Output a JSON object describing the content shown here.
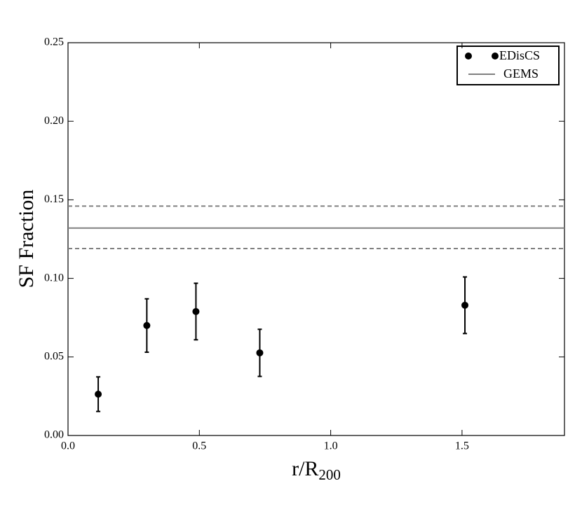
{
  "chart_data": {
    "type": "scatter",
    "xlabel": {
      "main": "r/R",
      "sub": "200"
    },
    "ylabel": "SF Fraction",
    "xlim": [
      0,
      1.89
    ],
    "ylim": [
      0,
      0.25
    ],
    "xticks": [
      {
        "value": 0,
        "label": "0.0"
      },
      {
        "value": 0.5,
        "label": "0.5"
      },
      {
        "value": 1,
        "label": "1.0"
      },
      {
        "value": 1.5,
        "label": "1.5"
      }
    ],
    "yticks": [
      {
        "value": 0,
        "label": "0.00"
      },
      {
        "value": 0.05,
        "label": "0.05"
      },
      {
        "value": 0.1,
        "label": "0.10"
      },
      {
        "value": 0.15,
        "label": "0.15"
      },
      {
        "value": 0.2,
        "label": "0.20"
      },
      {
        "value": 0.25,
        "label": "0.25"
      }
    ],
    "legend": "upper right",
    "series": [
      {
        "name": "EDisCS",
        "color": "#000000",
        "x": [
          0.115,
          0.3,
          0.487,
          0.73,
          1.511
        ],
        "values": [
          0.0263,
          0.07,
          0.0789,
          0.0526,
          0.0829
        ],
        "errors": [
          0.011,
          0.017,
          0.018,
          0.015,
          0.018
        ]
      },
      {
        "name": "GEMS",
        "color": "#808080",
        "value": 0.132,
        "upper": 0.146,
        "lower": 0.119
      }
    ]
  }
}
